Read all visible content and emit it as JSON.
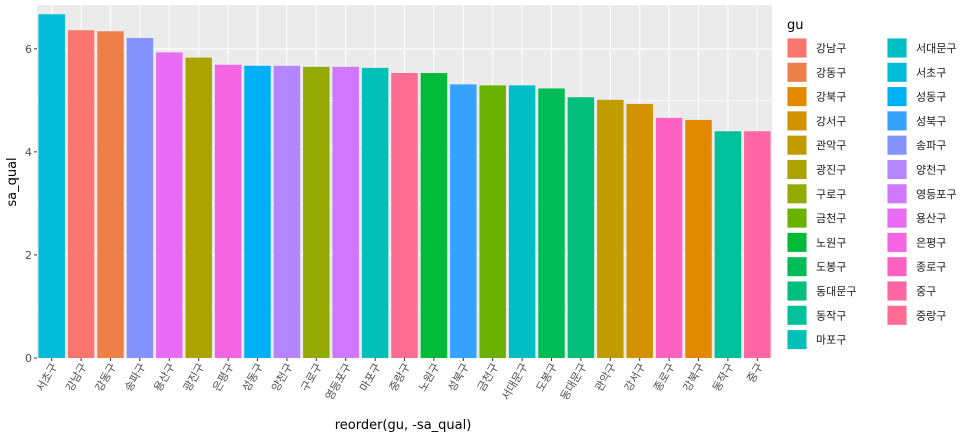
{
  "chart_data": {
    "type": "bar",
    "xlabel": "reorder(gu, -sa_qual)",
    "ylabel": "sa_qual",
    "ylim": [
      0,
      6.85
    ],
    "y_ticks": [
      0,
      2,
      4,
      6
    ],
    "grid": true,
    "legend_position": "right",
    "legend_title": "gu",
    "categories": [
      "서초구",
      "강남구",
      "강동구",
      "송파구",
      "용산구",
      "광진구",
      "은평구",
      "성동구",
      "양천구",
      "구로구",
      "영등포구",
      "마포구",
      "중랑구",
      "노원구",
      "성북구",
      "금천구",
      "서대문구",
      "도봉구",
      "동대문구",
      "관악구",
      "강서구",
      "종로구",
      "강북구",
      "동작구",
      "중구"
    ],
    "values": [
      6.67,
      6.36,
      6.34,
      6.21,
      5.93,
      5.83,
      5.69,
      5.67,
      5.67,
      5.65,
      5.65,
      5.63,
      5.53,
      5.53,
      5.31,
      5.29,
      5.29,
      5.23,
      5.06,
      5.01,
      4.93,
      4.66,
      4.62,
      4.4,
      4.4
    ],
    "legend": [
      {
        "label": "강남구",
        "color": "#F8766D"
      },
      {
        "label": "강동구",
        "color": "#EF7F49"
      },
      {
        "label": "강북구",
        "color": "#E38900"
      },
      {
        "label": "강서구",
        "color": "#D39200"
      },
      {
        "label": "관악구",
        "color": "#C09B00"
      },
      {
        "label": "광진구",
        "color": "#ABA300"
      },
      {
        "label": "구로구",
        "color": "#93AA00"
      },
      {
        "label": "금천구",
        "color": "#6BB100"
      },
      {
        "label": "노원구",
        "color": "#00BA38"
      },
      {
        "label": "도봉구",
        "color": "#00BC56"
      },
      {
        "label": "동대문구",
        "color": "#00BF7D"
      },
      {
        "label": "동작구",
        "color": "#00C19A"
      },
      {
        "label": "마포구",
        "color": "#00C0B8"
      },
      {
        "label": "서대문구",
        "color": "#00BFC4"
      },
      {
        "label": "서초구",
        "color": "#00BCD8"
      },
      {
        "label": "성동구",
        "color": "#00B0F6"
      },
      {
        "label": "성북구",
        "color": "#35A2FF"
      },
      {
        "label": "송파구",
        "color": "#8494FF"
      },
      {
        "label": "양천구",
        "color": "#B385FF"
      },
      {
        "label": "영등포구",
        "color": "#CF78FF"
      },
      {
        "label": "용산구",
        "color": "#E76BF3"
      },
      {
        "label": "은평구",
        "color": "#F564E3"
      },
      {
        "label": "종로구",
        "color": "#FF61C3"
      },
      {
        "label": "중구",
        "color": "#FF67A4"
      },
      {
        "label": "중랑구",
        "color": "#FF6C91"
      }
    ]
  }
}
